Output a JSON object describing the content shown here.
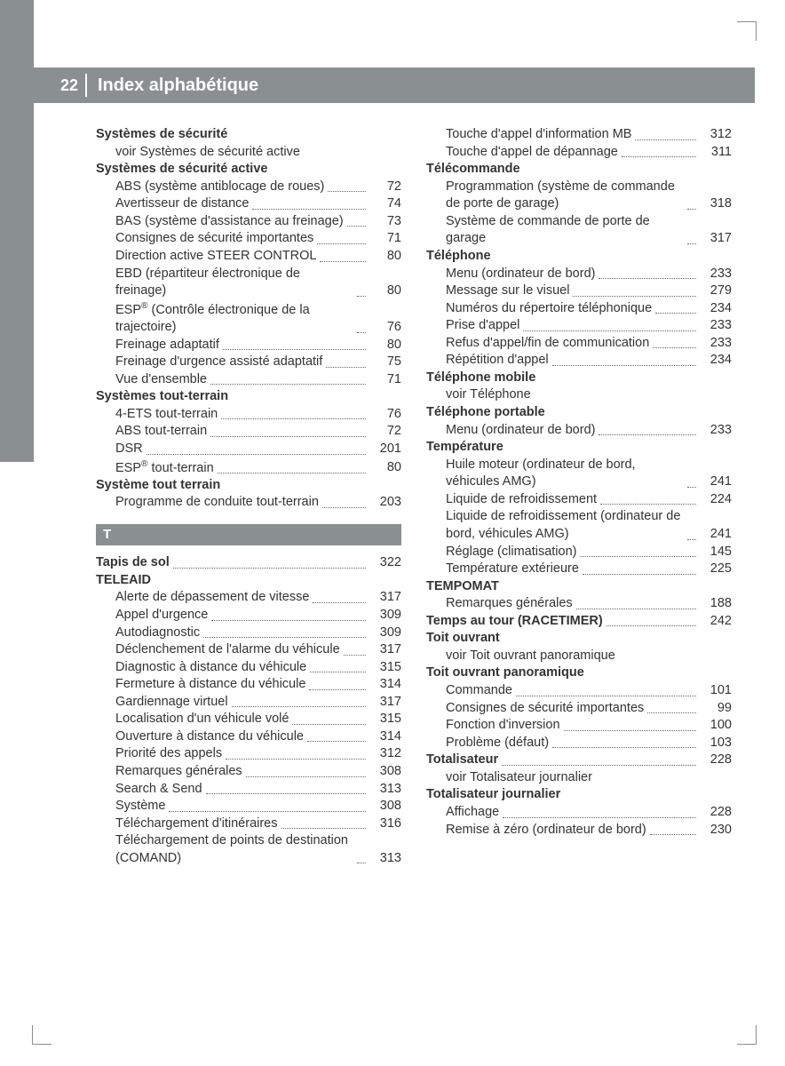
{
  "page_number": "22",
  "title": "Index alphabétique",
  "colors": {
    "header_bg": "#8a8f8f",
    "header_text": "#ffffff",
    "body_text": "#333333",
    "dots": "#666666"
  },
  "typography": {
    "title_fontsize_pt": 15,
    "body_fontsize_pt": 11,
    "font_family": "Arial, sans-serif"
  },
  "letter_section": "T",
  "index": [
    {
      "type": "heading",
      "text": "Systèmes de sécurité"
    },
    {
      "type": "see",
      "text": "voir Systèmes de sécurité active"
    },
    {
      "type": "heading",
      "text": "Systèmes de sécurité active"
    },
    {
      "type": "sub",
      "text": "ABS (système antiblocage de roues)",
      "page": "72"
    },
    {
      "type": "sub",
      "text": "Avertisseur de distance",
      "page": "74"
    },
    {
      "type": "sub",
      "text": "BAS (système d'assistance au freinage)",
      "page": "73"
    },
    {
      "type": "sub",
      "text": "Consignes de sécurité importantes",
      "page": "71"
    },
    {
      "type": "sub",
      "text": "Direction active STEER CONTROL",
      "page": "80"
    },
    {
      "type": "sub",
      "text": "EBD (répartiteur électronique de freinage)",
      "page": "80"
    },
    {
      "type": "sub",
      "text": "ESP® (Contrôle électronique de la trajectoire)",
      "page": "76"
    },
    {
      "type": "sub",
      "text": "Freinage adaptatif",
      "page": "80"
    },
    {
      "type": "sub",
      "text": "Freinage d'urgence assisté adaptatif",
      "page": "75"
    },
    {
      "type": "sub",
      "text": "Vue d'ensemble",
      "page": "71"
    },
    {
      "type": "heading",
      "text": "Systèmes tout-terrain"
    },
    {
      "type": "sub",
      "text": "4-ETS tout-terrain",
      "page": "76"
    },
    {
      "type": "sub",
      "text": "ABS tout-terrain",
      "page": "72"
    },
    {
      "type": "sub",
      "text": "DSR",
      "page": "201"
    },
    {
      "type": "sub",
      "text": "ESP® tout-terrain",
      "page": "80"
    },
    {
      "type": "heading",
      "text": "Système tout terrain"
    },
    {
      "type": "sub",
      "text": "Programme de conduite tout-terrain",
      "page": "203"
    },
    {
      "type": "letter",
      "text": "T"
    },
    {
      "type": "heading-page",
      "text": "Tapis de sol",
      "page": "322"
    },
    {
      "type": "heading",
      "text": "TELEAID"
    },
    {
      "type": "sub",
      "text": "Alerte de dépassement de vitesse",
      "page": "317"
    },
    {
      "type": "sub",
      "text": "Appel d'urgence",
      "page": "309"
    },
    {
      "type": "sub",
      "text": "Autodiagnostic",
      "page": "309"
    },
    {
      "type": "sub",
      "text": "Déclenchement de l'alarme du véhicule",
      "page": "317"
    },
    {
      "type": "sub",
      "text": "Diagnostic à distance du véhicule",
      "page": "315"
    },
    {
      "type": "sub",
      "text": "Fermeture à distance du véhicule",
      "page": "314"
    },
    {
      "type": "sub",
      "text": "Gardiennage virtuel",
      "page": "317"
    },
    {
      "type": "sub",
      "text": "Localisation d'un véhicule volé",
      "page": "315"
    },
    {
      "type": "sub",
      "text": "Ouverture à distance du véhicule",
      "page": "314"
    },
    {
      "type": "sub",
      "text": "Priorité des appels",
      "page": "312"
    },
    {
      "type": "sub",
      "text": "Remarques générales",
      "page": "308"
    },
    {
      "type": "sub",
      "text": "Search & Send",
      "page": "313"
    },
    {
      "type": "sub",
      "text": "Système",
      "page": "308"
    },
    {
      "type": "sub",
      "text": "Téléchargement d'itinéraires",
      "page": "316"
    },
    {
      "type": "sub",
      "text": "Téléchargement de points de destination (COMAND)",
      "page": "313"
    },
    {
      "type": "sub",
      "text": "Touche d'appel d'information MB",
      "page": "312"
    },
    {
      "type": "sub",
      "text": "Touche d'appel de dépannage",
      "page": "311"
    },
    {
      "type": "heading",
      "text": "Télécommande"
    },
    {
      "type": "sub",
      "text": "Programmation (système de commande de porte de garage)",
      "page": "318"
    },
    {
      "type": "sub",
      "text": "Système de commande de porte de garage",
      "page": "317"
    },
    {
      "type": "heading",
      "text": "Téléphone"
    },
    {
      "type": "sub",
      "text": "Menu (ordinateur de bord)",
      "page": "233"
    },
    {
      "type": "sub",
      "text": "Message sur le visuel",
      "page": "279"
    },
    {
      "type": "sub",
      "text": "Numéros du répertoire téléphonique",
      "page": "234"
    },
    {
      "type": "sub",
      "text": "Prise d'appel",
      "page": "233"
    },
    {
      "type": "sub",
      "text": "Refus d'appel/fin de communication",
      "page": "233"
    },
    {
      "type": "sub",
      "text": "Répétition d'appel",
      "page": "234"
    },
    {
      "type": "heading",
      "text": "Téléphone mobile"
    },
    {
      "type": "see",
      "text": "voir Téléphone"
    },
    {
      "type": "heading",
      "text": "Téléphone portable"
    },
    {
      "type": "sub",
      "text": "Menu (ordinateur de bord)",
      "page": "233"
    },
    {
      "type": "heading",
      "text": "Température"
    },
    {
      "type": "sub",
      "text": "Huile moteur (ordinateur de bord, véhicules AMG)",
      "page": "241"
    },
    {
      "type": "sub",
      "text": "Liquide de refroidissement",
      "page": "224"
    },
    {
      "type": "sub",
      "text": "Liquide de refroidissement (ordinateur de bord, véhicules AMG)",
      "page": "241"
    },
    {
      "type": "sub",
      "text": "Réglage (climatisation)",
      "page": "145"
    },
    {
      "type": "sub",
      "text": "Température extérieure",
      "page": "225"
    },
    {
      "type": "heading",
      "text": "TEMPOMAT"
    },
    {
      "type": "sub",
      "text": "Remarques générales",
      "page": "188"
    },
    {
      "type": "heading-page",
      "text": "Temps au tour (RACETIMER)",
      "page": "242"
    },
    {
      "type": "heading",
      "text": "Toit ouvrant"
    },
    {
      "type": "see",
      "text": "voir Toit ouvrant panoramique"
    },
    {
      "type": "heading",
      "text": "Toit ouvrant panoramique"
    },
    {
      "type": "sub",
      "text": "Commande",
      "page": "101"
    },
    {
      "type": "sub",
      "text": "Consignes de sécurité importantes",
      "page": "99"
    },
    {
      "type": "sub",
      "text": "Fonction d'inversion",
      "page": "100"
    },
    {
      "type": "sub",
      "text": "Problème (défaut)",
      "page": "103"
    },
    {
      "type": "heading-page",
      "text": "Totalisateur",
      "page": "228"
    },
    {
      "type": "see",
      "text": "voir Totalisateur journalier"
    },
    {
      "type": "heading",
      "text": "Totalisateur journalier"
    },
    {
      "type": "sub",
      "text": "Affichage",
      "page": "228"
    },
    {
      "type": "sub",
      "text": "Remise à zéro (ordinateur de bord)",
      "page": "230"
    }
  ]
}
